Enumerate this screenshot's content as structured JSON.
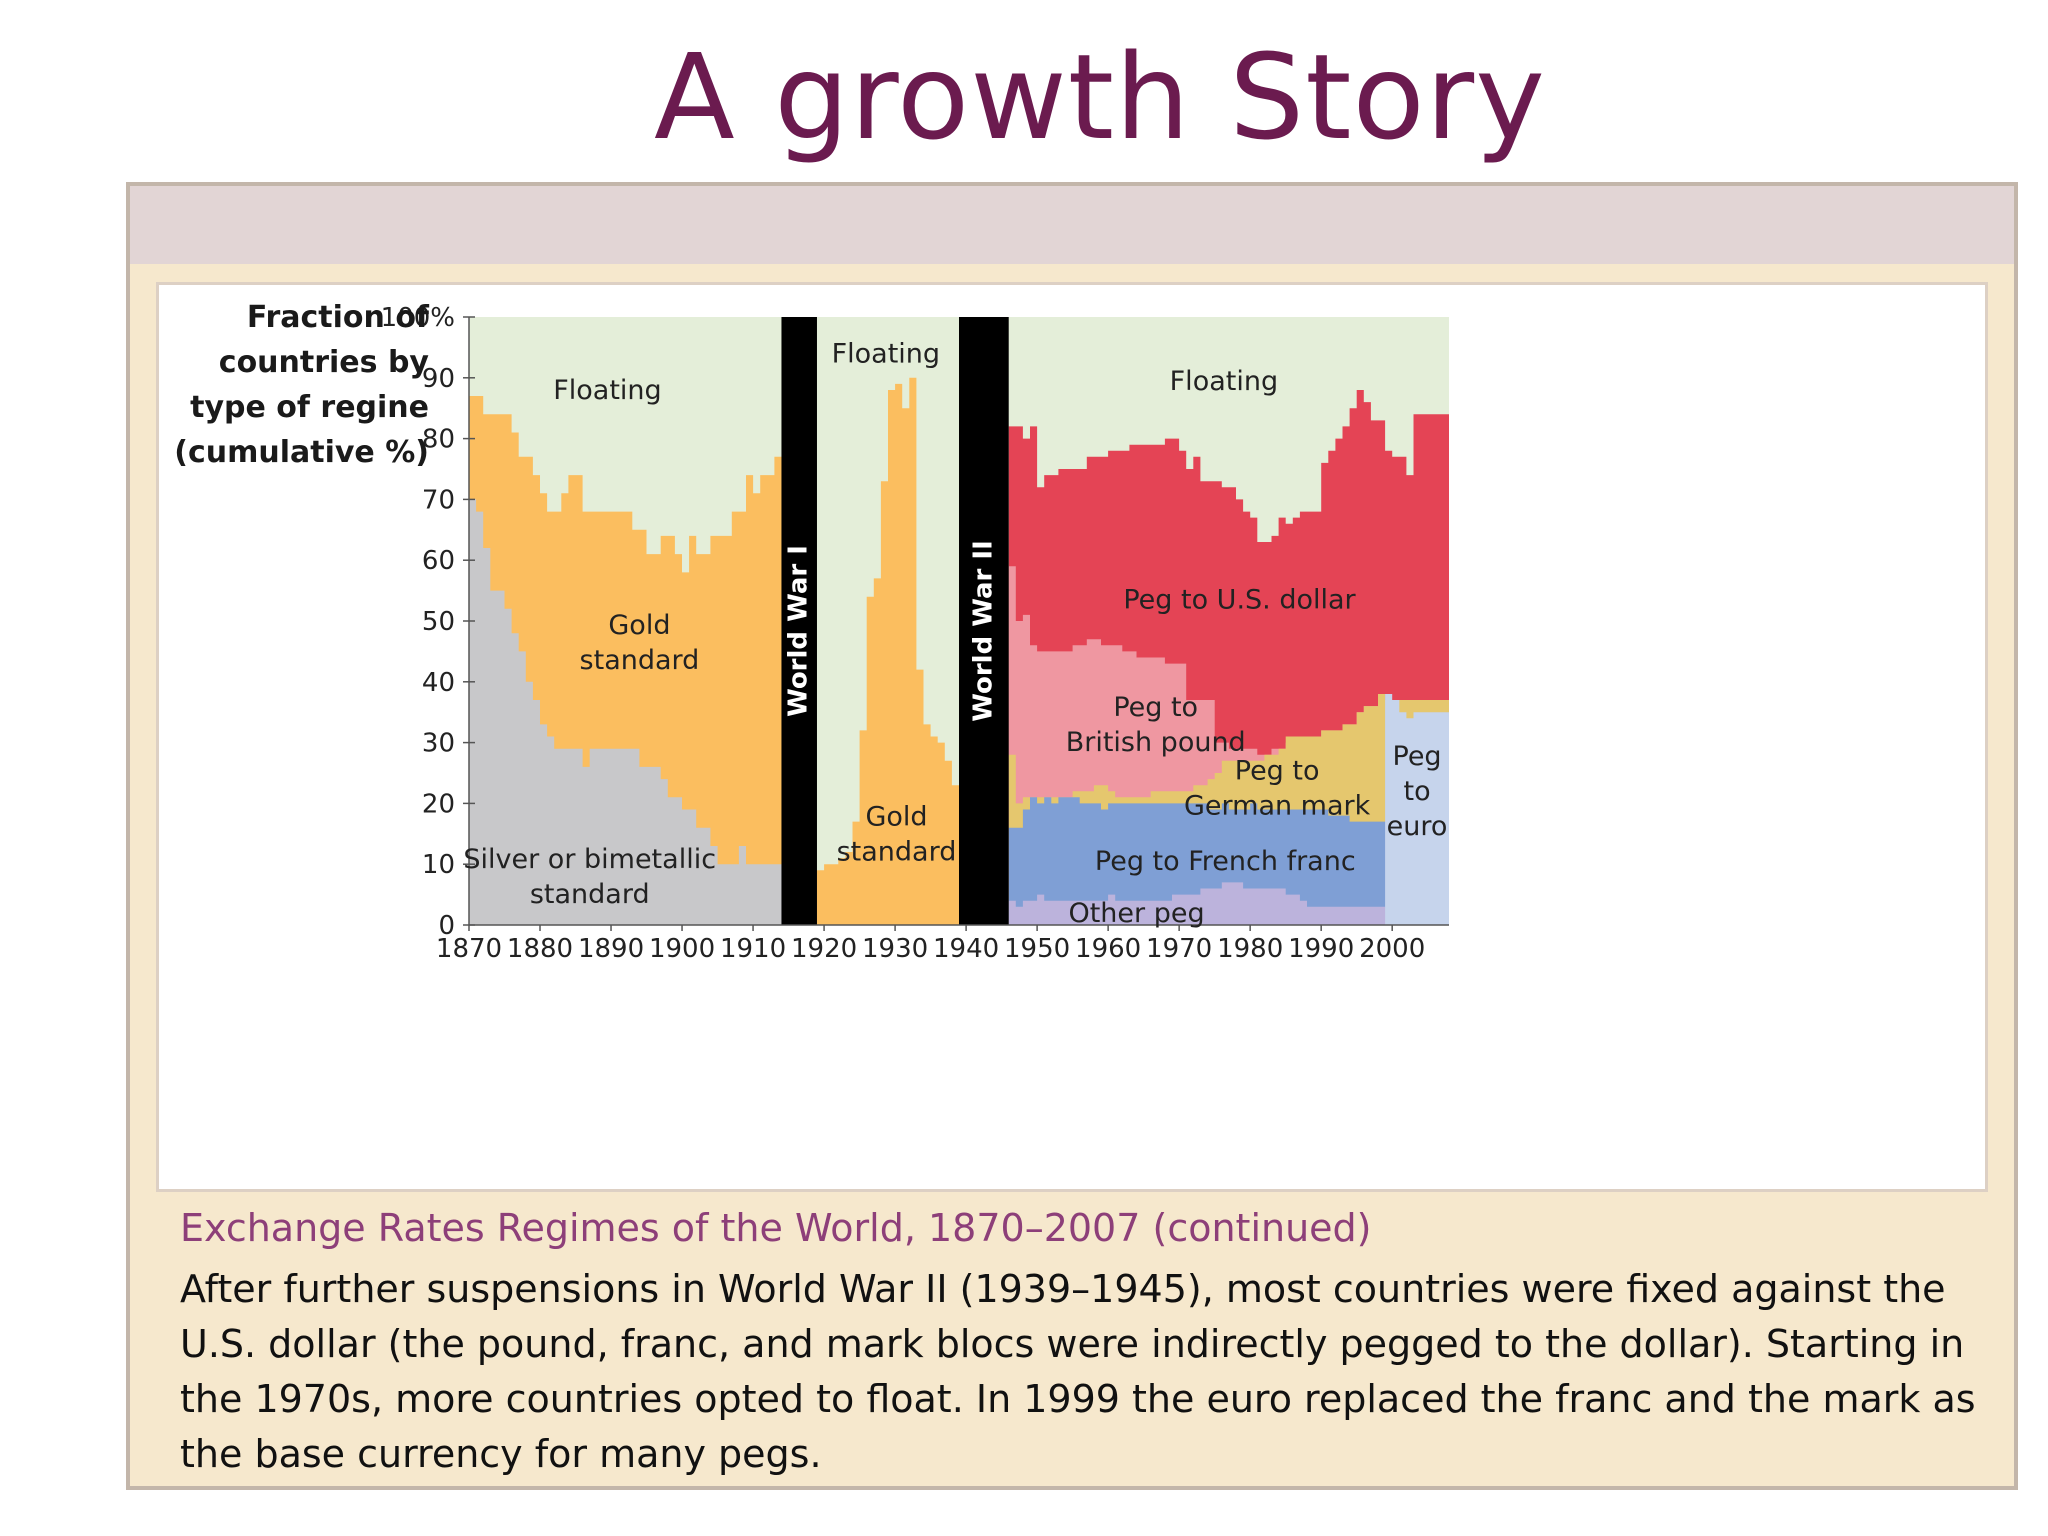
{
  "slide": {
    "title": "A growth Story",
    "caption_title": "Exchange Rates Regimes of the World, 1870–2007 (continued)",
    "caption_lines": [
      "After further suspensions in World War II (1939–1945), most countries were fixed against the",
      "U.S. dollar (the pound, franc, and mark blocs were indirectly pegged to the dollar). Starting in",
      "the 1970s, more countries opted to float. In 1999 the euro replaced the franc and the mark as",
      "the base currency for many pegs."
    ]
  },
  "chart_data": {
    "type": "area",
    "title": "",
    "ylabel_lines": [
      "Fraction of",
      "countries by",
      "type of regine",
      "(cumulative %)"
    ],
    "xlim": [
      1870,
      2008
    ],
    "ylim": [
      0,
      100
    ],
    "x_ticks": [
      "1870",
      "1880",
      "1890",
      "1900",
      "1910",
      "1920",
      "1930",
      "1940",
      "1950",
      "1960",
      "1970",
      "1980",
      "1990",
      "2000"
    ],
    "y_ticks": [
      "100%",
      "90",
      "80",
      "70",
      "60",
      "50",
      "40",
      "30",
      "20",
      "10",
      "0"
    ],
    "wars": [
      {
        "name": "World War I",
        "start": 1914,
        "end": 1919
      },
      {
        "name": "World War II",
        "start": 1939,
        "end": 1946
      }
    ],
    "colors": {
      "floating": "#e4eed9",
      "gold": "#fbbe5f",
      "silver": "#c8c8ca",
      "usd": "#e44455",
      "gbp": "#ef97a1",
      "dem": "#e5c76e",
      "frf": "#7f9fd5",
      "other": "#bcb3dc",
      "euro": "#c6d4ec",
      "war": "#000000"
    },
    "periods": [
      {
        "x": [
          1870,
          1871,
          1872,
          1873,
          1874,
          1875,
          1876,
          1877,
          1878,
          1879,
          1880,
          1881,
          1882,
          1883,
          1884,
          1885,
          1886,
          1887,
          1888,
          1889,
          1890,
          1891,
          1892,
          1893,
          1894,
          1895,
          1896,
          1897,
          1898,
          1899,
          1900,
          1901,
          1902,
          1903,
          1904,
          1905,
          1906,
          1907,
          1908,
          1909,
          1910,
          1911,
          1912,
          1913,
          1914
        ],
        "series": [
          {
            "name": "Silver or bimetallic standard",
            "key": "silver",
            "values": [
              70,
              68,
              62,
              55,
              55,
              52,
              48,
              45,
              40,
              37,
              33,
              31,
              29,
              29,
              29,
              29,
              26,
              29,
              29,
              29,
              29,
              29,
              29,
              29,
              26,
              26,
              26,
              24,
              21,
              21,
              19,
              19,
              16,
              16,
              13,
              10,
              10,
              10,
              13,
              10,
              10,
              10,
              10,
              10
            ]
          },
          {
            "name": "Gold standard",
            "key": "gold",
            "values": [
              87,
              87,
              84,
              84,
              84,
              84,
              81,
              77,
              77,
              74,
              71,
              68,
              68,
              71,
              74,
              74,
              68,
              68,
              68,
              68,
              68,
              68,
              68,
              65,
              65,
              61,
              61,
              64,
              64,
              61,
              58,
              64,
              61,
              61,
              64,
              64,
              64,
              68,
              68,
              74,
              71,
              74,
              74,
              77
            ]
          }
        ]
      },
      {
        "x": [
          1919,
          1920,
          1921,
          1922,
          1923,
          1924,
          1925,
          1926,
          1927,
          1928,
          1929,
          1930,
          1931,
          1932,
          1933,
          1934,
          1935,
          1936,
          1937,
          1938,
          1939
        ],
        "series": [
          {
            "name": "Gold standard",
            "key": "gold",
            "values": [
              9,
              10,
              10,
              11,
              12,
              17,
              32,
              54,
              57,
              73,
              88,
              89,
              85,
              90,
              42,
              33,
              31,
              30,
              27,
              23
            ]
          }
        ]
      },
      {
        "x": [
          1946,
          1947,
          1948,
          1949,
          1950,
          1951,
          1952,
          1953,
          1954,
          1955,
          1956,
          1957,
          1958,
          1959,
          1960,
          1961,
          1962,
          1963,
          1964,
          1965,
          1966,
          1967,
          1968,
          1969,
          1970,
          1971,
          1972,
          1973,
          1974,
          1975,
          1976,
          1977,
          1978,
          1979,
          1980,
          1981,
          1982,
          1983,
          1984,
          1985,
          1986,
          1987,
          1988,
          1989,
          1990,
          1991,
          1992,
          1993,
          1994,
          1995,
          1996,
          1997,
          1998,
          1999,
          2000,
          2001,
          2002,
          2003,
          2004,
          2005,
          2006,
          2007,
          2008
        ],
        "series": [
          {
            "name": "Other peg",
            "key": "other",
            "values": [
              4,
              3,
              4,
              4,
              5,
              4,
              4,
              4,
              4,
              4,
              4,
              4,
              4,
              4,
              5,
              4,
              4,
              4,
              4,
              4,
              4,
              4,
              4,
              5,
              5,
              5,
              5,
              6,
              6,
              6,
              7,
              7,
              7,
              6,
              6,
              6,
              6,
              6,
              6,
              5,
              5,
              4,
              3,
              3,
              3,
              3,
              3,
              3,
              3,
              3,
              3,
              3,
              3,
              3,
              3,
              3,
              3,
              2,
              2,
              2,
              2,
              3
            ]
          },
          {
            "name": "Peg to French franc",
            "key": "frf",
            "values": [
              16,
              16,
              19,
              21,
              20,
              21,
              20,
              21,
              21,
              21,
              20,
              20,
              20,
              19,
              20,
              20,
              20,
              20,
              20,
              20,
              20,
              20,
              20,
              20,
              20,
              20,
              20,
              20,
              19,
              19,
              20,
              19,
              19,
              19,
              20,
              19,
              19,
              19,
              19,
              19,
              19,
              19,
              19,
              19,
              19,
              18,
              18,
              18,
              17,
              17,
              17,
              17,
              17,
              17,
              16,
              15,
              15,
              15,
              15,
              15,
              15,
              15
            ]
          },
          {
            "name": "Peg to German mark",
            "key": "dem",
            "values": [
              28,
              20,
              21,
              21,
              21,
              21,
              21,
              21,
              21,
              22,
              22,
              22,
              23,
              23,
              22,
              21,
              21,
              21,
              21,
              21,
              22,
              22,
              22,
              22,
              22,
              22,
              23,
              23,
              24,
              25,
              27,
              27,
              27,
              27,
              27,
              27,
              28,
              28,
              29,
              31,
              31,
              31,
              31,
              31,
              32,
              32,
              32,
              33,
              33,
              35,
              36,
              36,
              38,
              37,
              37,
              37,
              37,
              37,
              37,
              37,
              37,
              37
            ]
          },
          {
            "name": "Peg to British pound",
            "key": "gbp",
            "values": [
              59,
              50,
              51,
              46,
              45,
              45,
              45,
              45,
              45,
              46,
              46,
              47,
              47,
              46,
              46,
              46,
              45,
              45,
              44,
              44,
              44,
              44,
              43,
              43,
              43,
              37,
              37,
              37,
              37,
              30,
              30,
              29,
              29,
              29,
              29,
              28,
              28,
              29,
              29,
              30,
              30,
              30,
              31,
              31,
              32,
              32,
              32,
              33,
              33,
              35,
              36,
              36,
              38,
              37,
              37,
              37,
              37,
              37,
              37,
              37,
              37,
              37
            ]
          },
          {
            "name": "Peg to U.S. dollar",
            "key": "usd",
            "values": [
              82,
              82,
              80,
              82,
              72,
              74,
              74,
              75,
              75,
              75,
              75,
              77,
              77,
              77,
              78,
              78,
              78,
              79,
              79,
              79,
              79,
              79,
              80,
              80,
              78,
              75,
              77,
              73,
              73,
              73,
              72,
              72,
              70,
              68,
              67,
              63,
              63,
              64,
              67,
              66,
              67,
              68,
              68,
              68,
              76,
              78,
              80,
              82,
              85,
              88,
              86,
              83,
              83,
              78,
              77,
              77,
              74,
              84,
              84,
              84,
              84,
              84
            ]
          }
        ]
      },
      {
        "x": [
          1999,
          2000,
          2001,
          2002,
          2003,
          2004,
          2005,
          2006,
          2007,
          2008
        ],
        "series": [
          {
            "name": "Peg to euro",
            "key": "euro",
            "values": [
              38,
              37,
              35,
              34,
              35,
              35,
              35,
              35,
              35
            ]
          }
        ]
      }
    ],
    "labels": [
      {
        "text": [
          "Floating"
        ],
        "x": 1889.5,
        "y": 88
      },
      {
        "text": [
          "Gold",
          "standard"
        ],
        "x": 1894,
        "y": 46.5
      },
      {
        "text": [
          "Silver or bimetallic",
          "standard"
        ],
        "x": 1887,
        "y": 8
      },
      {
        "text": [
          "Floating"
        ],
        "x": 1928.7,
        "y": 94
      },
      {
        "text": [
          "Gold",
          "standard"
        ],
        "x": 1930.2,
        "y": 15
      },
      {
        "text": [
          "Floating"
        ],
        "x": 1976.3,
        "y": 89.5
      },
      {
        "text": [
          "Peg to U.S. dollar"
        ],
        "x": 1978.5,
        "y": 53.5
      },
      {
        "text": [
          "Peg to",
          "British pound"
        ],
        "x": 1966.7,
        "y": 33
      },
      {
        "text": [
          "Peg to",
          "German mark"
        ],
        "x": 1983.8,
        "y": 22.5
      },
      {
        "text": [
          "Peg",
          "to",
          "euro"
        ],
        "x": 2003.5,
        "y": 22
      },
      {
        "text": [
          "Peg to French franc"
        ],
        "x": 1976.5,
        "y": 10.5
      },
      {
        "text": [
          "Other peg"
        ],
        "x": 1964,
        "y": 2
      }
    ]
  }
}
